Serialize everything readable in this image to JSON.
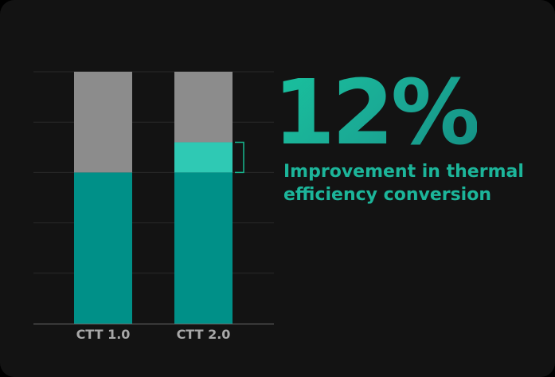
{
  "chart_data": {
    "type": "bar",
    "stacked": true,
    "categories": [
      "CTT 1.0",
      "CTT 2.0"
    ],
    "series": [
      {
        "values": [
          60,
          60
        ],
        "color": "#009088"
      },
      {
        "values": [
          0,
          12
        ],
        "color": "#2fc9b4"
      },
      {
        "values": [
          40,
          28
        ],
        "color": "#8c8c8c"
      }
    ],
    "ylim": [
      0,
      100
    ],
    "grid": true,
    "bracket_range": [
      60,
      72
    ],
    "bracket_color": "#17b890"
  },
  "callout": {
    "value": "12%",
    "text_line1": "Improvement in thermal",
    "text_line2": "efficiency conversion"
  }
}
